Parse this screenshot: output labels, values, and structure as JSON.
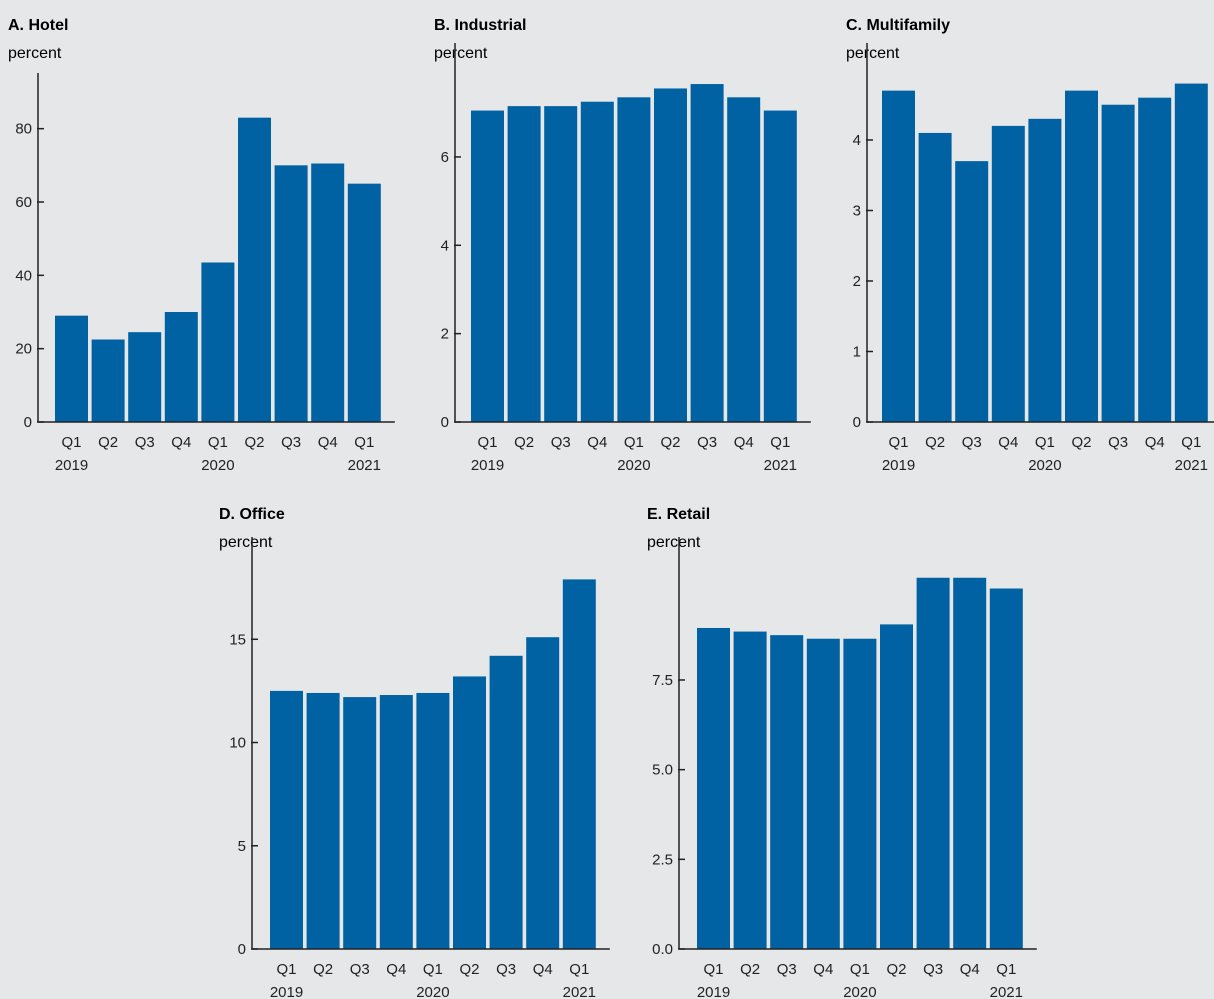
{
  "colors": {
    "bar": "#0062a3",
    "axis": "#222222",
    "background": "#e6e7e8"
  },
  "chart_data": [
    {
      "type": "bar",
      "title": "A. Hotel",
      "ylabel": "percent",
      "categories": [
        "Q1",
        "Q2",
        "Q3",
        "Q4",
        "Q1",
        "Q2",
        "Q3",
        "Q4",
        "Q1"
      ],
      "year_labels": [
        "2019",
        "2020",
        "2021"
      ],
      "values": [
        29,
        22.5,
        24.5,
        30,
        43.5,
        83,
        70,
        70.5,
        65
      ],
      "ylim": [
        0,
        87
      ],
      "yticks": [
        0,
        20,
        40,
        60,
        80
      ],
      "ytick_labels": [
        "0",
        "20",
        "40",
        "60",
        "80"
      ],
      "grid": false
    },
    {
      "type": "bar",
      "title": "B. Industrial",
      "ylabel": "percent",
      "categories": [
        "Q1",
        "Q2",
        "Q3",
        "Q4",
        "Q1",
        "Q2",
        "Q3",
        "Q4",
        "Q1"
      ],
      "year_labels": [
        "2019",
        "2020",
        "2021"
      ],
      "values": [
        7.05,
        7.15,
        7.15,
        7.25,
        7.35,
        7.55,
        7.65,
        7.35,
        7.05
      ],
      "ylim": [
        0,
        7.9
      ],
      "yticks": [
        0,
        2,
        4,
        6
      ],
      "ytick_labels": [
        "0",
        "2",
        "4",
        "6"
      ],
      "grid": false
    },
    {
      "type": "bar",
      "title": "C. Multifamily",
      "ylabel": "percent",
      "categories": [
        "Q1",
        "Q2",
        "Q3",
        "Q4",
        "Q1",
        "Q2",
        "Q3",
        "Q4",
        "Q1"
      ],
      "year_labels": [
        "2019",
        "2020",
        "2021"
      ],
      "values": [
        4.7,
        4.1,
        3.7,
        4.2,
        4.3,
        4.7,
        4.5,
        4.6,
        4.8
      ],
      "ylim": [
        0,
        4.95
      ],
      "yticks": [
        0,
        1,
        2,
        3,
        4
      ],
      "ytick_labels": [
        "0",
        "1",
        "2",
        "3",
        "4"
      ],
      "grid": false
    },
    {
      "type": "bar",
      "title": "D. Office",
      "ylabel": "percent",
      "categories": [
        "Q1",
        "Q2",
        "Q3",
        "Q4",
        "Q1",
        "Q2",
        "Q3",
        "Q4",
        "Q1"
      ],
      "year_labels": [
        "2019",
        "2020",
        "2021"
      ],
      "values": [
        12.5,
        12.4,
        12.2,
        12.3,
        12.4,
        13.2,
        14.2,
        15.1,
        17.9
      ],
      "ylim": [
        0,
        18.5
      ],
      "yticks": [
        0,
        5,
        10,
        15
      ],
      "ytick_labels": [
        "0",
        "5",
        "10",
        "15"
      ],
      "grid": false
    },
    {
      "type": "bar",
      "title": "E. Retail",
      "ylabel": "percent",
      "categories": [
        "Q1",
        "Q2",
        "Q3",
        "Q4",
        "Q1",
        "Q2",
        "Q3",
        "Q4",
        "Q1"
      ],
      "year_labels": [
        "2019",
        "2020",
        "2021"
      ],
      "values": [
        8.95,
        8.85,
        8.75,
        8.65,
        8.65,
        9.05,
        10.35,
        10.35,
        10.05
      ],
      "ylim": [
        0,
        10.65
      ],
      "yticks": [
        0,
        2.5,
        5,
        7.5
      ],
      "ytick_labels": [
        "0.0",
        "2.5",
        "5.0",
        "7.5"
      ],
      "grid": false
    }
  ]
}
